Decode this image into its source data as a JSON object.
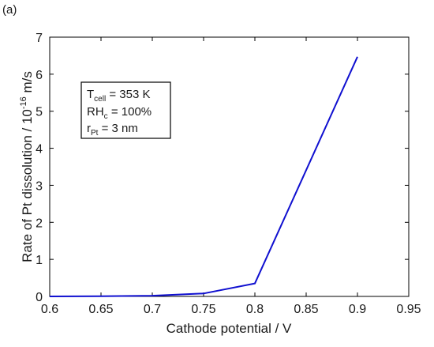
{
  "chart_data": {
    "type": "line",
    "panel_label": "(a)",
    "xlabel": "Cathode potential  /  V",
    "ylabel_main": "Rate of Pt dissolution  /  10",
    "ylabel_exponent": "-16",
    "ylabel_unit": " m/s",
    "xlim": [
      0.6,
      0.95
    ],
    "ylim": [
      0,
      7
    ],
    "x_ticks": [
      "0.6",
      "0.65",
      "0.7",
      "0.75",
      "0.8",
      "0.85",
      "0.9",
      "0.95"
    ],
    "y_ticks": [
      "0",
      "1",
      "2",
      "3",
      "4",
      "5",
      "6",
      "7"
    ],
    "grid": false,
    "line_color": "#1010d0",
    "series": [
      {
        "x": [
          0.6,
          0.65,
          0.7,
          0.75,
          0.8,
          0.9
        ],
        "y": [
          0.0,
          0.005,
          0.02,
          0.08,
          0.35,
          6.47
        ]
      }
    ],
    "annotation": {
      "lines": [
        {
          "main": "T",
          "sub": "cell",
          "rest": " = 353 K"
        },
        {
          "main": "RH",
          "sub": "c",
          "rest": " = 100%"
        },
        {
          "main": "r",
          "sub": "Pt",
          "rest": " = 3 nm"
        }
      ]
    }
  }
}
